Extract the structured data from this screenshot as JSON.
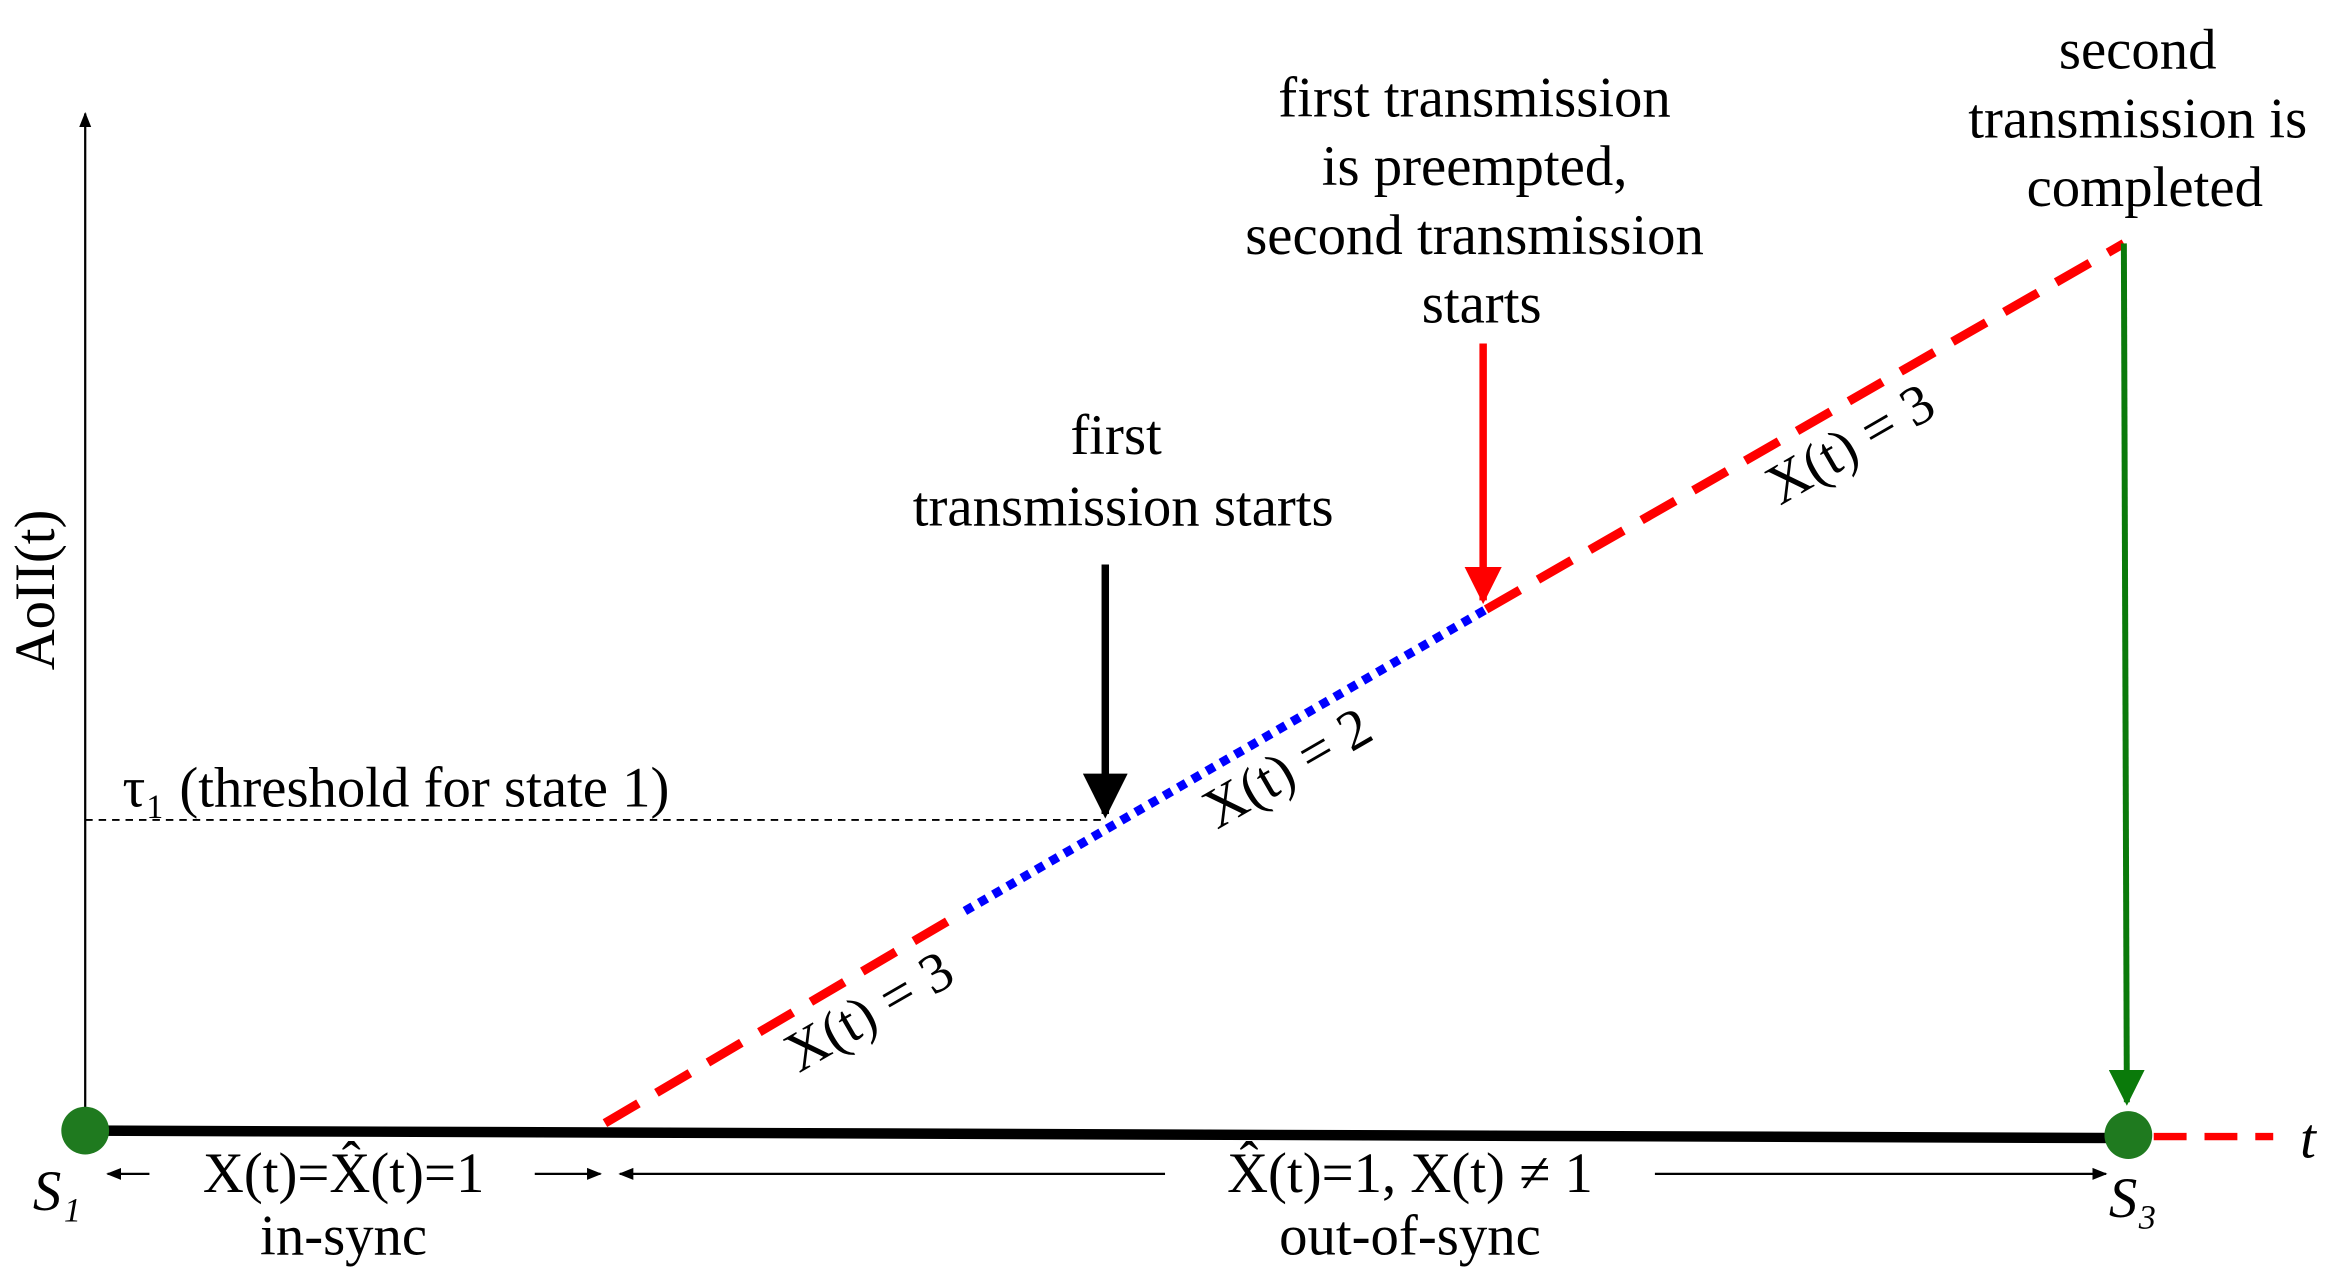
{
  "axes": {
    "y_label": "AoII(t)",
    "x_label": "t"
  },
  "threshold": {
    "label": "τ₁ (threshold for state 1)"
  },
  "annotations": {
    "first_start": {
      "lines": [
        "first",
        "transmission starts"
      ]
    },
    "preempted": {
      "lines": [
        "first transmission",
        "is preempted,",
        "second transmission",
        "starts"
      ]
    },
    "completed": {
      "lines": [
        "second",
        "transmission is",
        "completed"
      ]
    }
  },
  "segments": [
    {
      "label": "X(t) = 3"
    },
    {
      "label": "X(t) = 2"
    },
    {
      "label": "X(t) = 3"
    }
  ],
  "nodes": [
    {
      "label": "S₁"
    },
    {
      "label": "S₃"
    }
  ],
  "ranges": [
    {
      "condition": "X(t)=X̂(t)=1",
      "state": "in-sync"
    },
    {
      "condition": "X̂(t)=1, X(t) ≠ 1",
      "state": "out-of-sync"
    }
  ]
}
